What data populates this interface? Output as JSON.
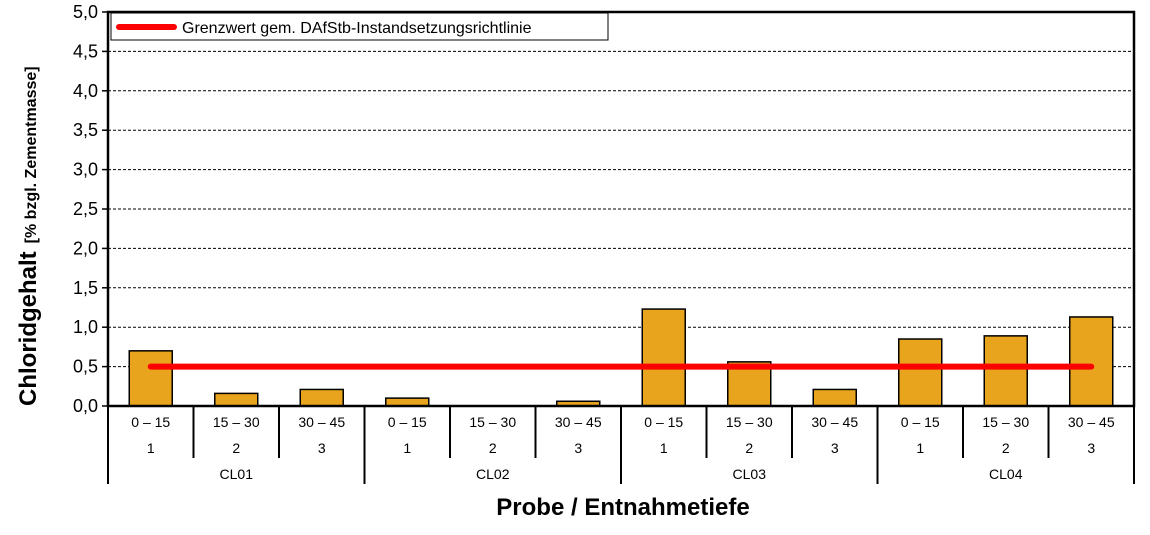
{
  "chart_data": {
    "type": "bar",
    "ylabel": "Chloridgehalt",
    "ylabel_unit": "[% bzgl. Zementmasse]",
    "xlabel": "Probe / Entnahmetiefe",
    "ylim": [
      0,
      5.0
    ],
    "yticks": [
      "0,0",
      "0,5",
      "1,0",
      "1,5",
      "2,0",
      "2,5",
      "3,0",
      "3,5",
      "4,0",
      "4,5",
      "5,0"
    ],
    "grid": "horizontal dashed",
    "groups": [
      {
        "label": "CL01",
        "categories": [
          {
            "depth": "0 – 15",
            "number": "1",
            "value": 0.7
          },
          {
            "depth": "15 – 30",
            "number": "2",
            "value": 0.16
          },
          {
            "depth": "30 – 45",
            "number": "3",
            "value": 0.21
          }
        ]
      },
      {
        "label": "CL02",
        "categories": [
          {
            "depth": "0 – 15",
            "number": "1",
            "value": 0.1
          },
          {
            "depth": "15 – 30",
            "number": "2",
            "value": 0.0
          },
          {
            "depth": "30 – 45",
            "number": "3",
            "value": 0.06
          }
        ]
      },
      {
        "label": "CL03",
        "categories": [
          {
            "depth": "0 – 15",
            "number": "1",
            "value": 1.23
          },
          {
            "depth": "15 – 30",
            "number": "2",
            "value": 0.56
          },
          {
            "depth": "30 – 45",
            "number": "3",
            "value": 0.21
          }
        ]
      },
      {
        "label": "CL04",
        "categories": [
          {
            "depth": "0 – 15",
            "number": "1",
            "value": 0.85
          },
          {
            "depth": "15 – 30",
            "number": "2",
            "value": 0.89
          },
          {
            "depth": "30 – 45",
            "number": "3",
            "value": 1.13
          }
        ]
      }
    ],
    "limit_line": {
      "label": "Grenzwert gem. DAfStb-Instandsetzungsrichtlinie",
      "value": 0.5,
      "color": "#ff0000"
    },
    "bar_color": "#e8a41c",
    "legend_position": "top-left"
  }
}
